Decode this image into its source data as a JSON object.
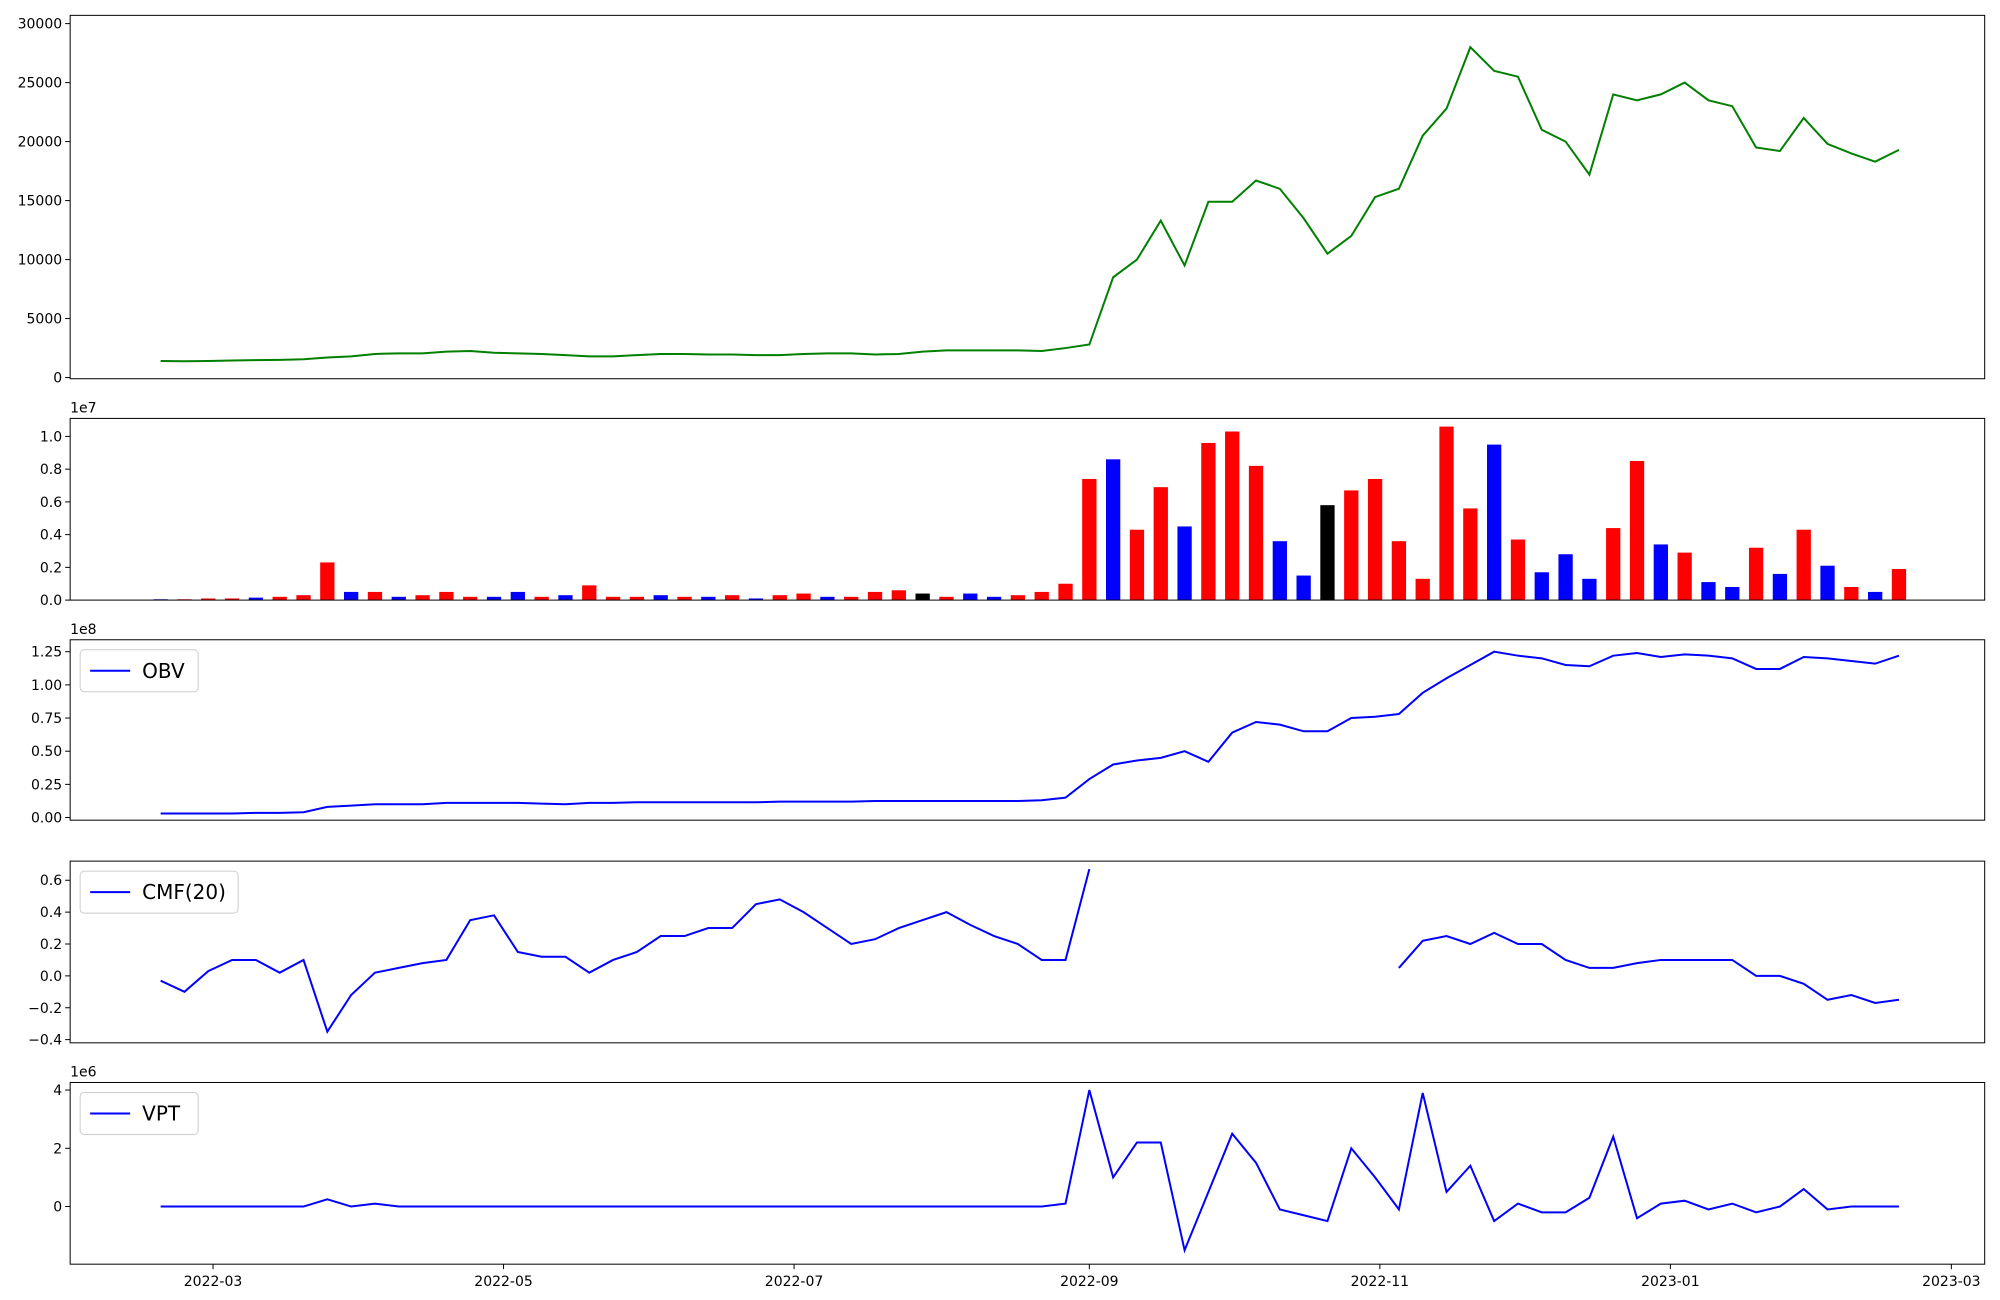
{
  "chart_data": [
    {
      "type": "line",
      "color": "green",
      "x": [
        "2022-02-18",
        "2022-02-23",
        "2022-02-28",
        "2022-03-05",
        "2022-03-10",
        "2022-03-15",
        "2022-03-20",
        "2022-03-25",
        "2022-03-30",
        "2022-04-04",
        "2022-04-09",
        "2022-04-14",
        "2022-04-19",
        "2022-04-24",
        "2022-04-29",
        "2022-05-04",
        "2022-05-09",
        "2022-05-14",
        "2022-05-19",
        "2022-05-24",
        "2022-05-29",
        "2022-06-03",
        "2022-06-08",
        "2022-06-13",
        "2022-06-18",
        "2022-06-23",
        "2022-06-28",
        "2022-07-03",
        "2022-07-08",
        "2022-07-13",
        "2022-07-18",
        "2022-07-23",
        "2022-07-28",
        "2022-08-02",
        "2022-08-07",
        "2022-08-12",
        "2022-08-17",
        "2022-08-22",
        "2022-08-27",
        "2022-09-01",
        "2022-09-06",
        "2022-09-11",
        "2022-09-16",
        "2022-09-21",
        "2022-09-26",
        "2022-10-01",
        "2022-10-06",
        "2022-10-11",
        "2022-10-16",
        "2022-10-21",
        "2022-10-26",
        "2022-10-31",
        "2022-11-05",
        "2022-11-10",
        "2022-11-15",
        "2022-11-20",
        "2022-11-25",
        "2022-11-30",
        "2022-12-05",
        "2022-12-10",
        "2022-12-15",
        "2022-12-20",
        "2022-12-25",
        "2022-12-30",
        "2023-01-04",
        "2023-01-09",
        "2023-01-14",
        "2023-01-19",
        "2023-01-24",
        "2023-01-29",
        "2023-02-03",
        "2023-02-08",
        "2023-02-13",
        "2023-02-18"
      ],
      "values": [
        1400,
        1380,
        1400,
        1450,
        1480,
        1500,
        1550,
        1700,
        1800,
        2000,
        2050,
        2050,
        2200,
        2250,
        2100,
        2050,
        2000,
        1900,
        1800,
        1800,
        1900,
        2000,
        2000,
        1950,
        1950,
        1900,
        1900,
        2000,
        2050,
        2050,
        1950,
        2000,
        2200,
        2300,
        2300,
        2300,
        2300,
        2250,
        2500,
        2800,
        8500,
        10000,
        13300,
        9500,
        14900,
        14900,
        16700,
        16000,
        13500,
        10500,
        12000,
        15300,
        16000,
        20500,
        22800,
        28000,
        26000,
        25500,
        21000,
        20000,
        17200,
        24000,
        23500,
        24000,
        25000,
        23500,
        23000,
        19500,
        19200,
        22000,
        19800,
        19000,
        18300,
        19300
      ],
      "xlim": [
        "2022-01-30",
        "2023-03-08"
      ],
      "ylim": [
        -100,
        30700
      ],
      "yticks": [
        0,
        5000,
        10000,
        15000,
        20000,
        25000,
        30000
      ]
    },
    {
      "type": "bar",
      "yscale_label": "1e7",
      "x": [
        "2022-02-18",
        "2022-02-23",
        "2022-02-28",
        "2022-03-05",
        "2022-03-10",
        "2022-03-15",
        "2022-03-20",
        "2022-03-25",
        "2022-03-30",
        "2022-04-04",
        "2022-04-09",
        "2022-04-14",
        "2022-04-19",
        "2022-04-24",
        "2022-04-29",
        "2022-05-04",
        "2022-05-09",
        "2022-05-14",
        "2022-05-19",
        "2022-05-24",
        "2022-05-29",
        "2022-06-03",
        "2022-06-08",
        "2022-06-13",
        "2022-06-18",
        "2022-06-23",
        "2022-06-28",
        "2022-07-03",
        "2022-07-08",
        "2022-07-13",
        "2022-07-18",
        "2022-07-23",
        "2022-07-28",
        "2022-08-02",
        "2022-08-07",
        "2022-08-12",
        "2022-08-17",
        "2022-08-22",
        "2022-08-27",
        "2022-09-01",
        "2022-09-06",
        "2022-09-11",
        "2022-09-16",
        "2022-09-21",
        "2022-09-26",
        "2022-10-01",
        "2022-10-06",
        "2022-10-11",
        "2022-10-16",
        "2022-10-21",
        "2022-10-26",
        "2022-10-31",
        "2022-11-05",
        "2022-11-10",
        "2022-11-15",
        "2022-11-20",
        "2022-11-25",
        "2022-11-30",
        "2022-12-05",
        "2022-12-10",
        "2022-12-15",
        "2022-12-20",
        "2022-12-25",
        "2022-12-30",
        "2023-01-04",
        "2023-01-09",
        "2023-01-14",
        "2023-01-19",
        "2023-01-24",
        "2023-01-29",
        "2023-02-03",
        "2023-02-08",
        "2023-02-13",
        "2023-02-18"
      ],
      "values": [
        0.005,
        0.005,
        0.01,
        0.01,
        0.015,
        0.02,
        0.03,
        0.23,
        0.05,
        0.05,
        0.02,
        0.03,
        0.05,
        0.02,
        0.02,
        0.05,
        0.02,
        0.03,
        0.09,
        0.02,
        0.02,
        0.03,
        0.02,
        0.02,
        0.03,
        0.01,
        0.03,
        0.04,
        0.02,
        0.02,
        0.05,
        0.06,
        0.04,
        0.02,
        0.04,
        0.02,
        0.03,
        0.05,
        0.1,
        0.74,
        0.86,
        0.43,
        0.69,
        0.45,
        0.96,
        1.03,
        0.82,
        0.36,
        0.15,
        0.58,
        0.67,
        0.74,
        0.36,
        0.13,
        1.06,
        0.56,
        0.95,
        0.37,
        0.17,
        0.28,
        0.13,
        0.44,
        0.85,
        0.34,
        0.29,
        0.11,
        0.08,
        0.32,
        0.16,
        0.43,
        0.21,
        0.08,
        0.05,
        0.19
      ],
      "colors": [
        "blue",
        "red",
        "red",
        "red",
        "blue",
        "red",
        "red",
        "red",
        "blue",
        "red",
        "blue",
        "red",
        "red",
        "red",
        "blue",
        "blue",
        "red",
        "blue",
        "red",
        "red",
        "red",
        "blue",
        "red",
        "blue",
        "red",
        "blue",
        "red",
        "red",
        "blue",
        "red",
        "red",
        "red",
        "black",
        "red",
        "blue",
        "blue",
        "red",
        "red",
        "red",
        "red",
        "blue",
        "red",
        "red",
        "blue",
        "red",
        "red",
        "red",
        "blue",
        "blue",
        "black",
        "red",
        "red",
        "red",
        "red",
        "red",
        "red",
        "blue",
        "red",
        "blue",
        "blue",
        "blue",
        "red",
        "red",
        "blue",
        "red",
        "blue",
        "blue",
        "red",
        "blue",
        "red",
        "blue",
        "red",
        "blue",
        "red"
      ],
      "xlim": [
        "2022-01-30",
        "2023-03-08"
      ],
      "ylim": [
        0,
        1.11
      ],
      "yticks": [
        {
          "value": 0,
          "label": "0.0"
        },
        {
          "value": 0.2,
          "label": "0.2"
        },
        {
          "value": 0.4,
          "label": "0.4"
        },
        {
          "value": 0.6,
          "label": "0.6"
        },
        {
          "value": 0.8,
          "label": "0.8"
        },
        {
          "value": 1,
          "label": "1.0"
        }
      ]
    },
    {
      "type": "line",
      "yscale_label": "1e8",
      "legend": "upper left",
      "x": [
        "2022-02-18",
        "2022-02-23",
        "2022-02-28",
        "2022-03-05",
        "2022-03-10",
        "2022-03-15",
        "2022-03-20",
        "2022-03-25",
        "2022-03-30",
        "2022-04-04",
        "2022-04-09",
        "2022-04-14",
        "2022-04-19",
        "2022-04-24",
        "2022-04-29",
        "2022-05-04",
        "2022-05-09",
        "2022-05-14",
        "2022-05-19",
        "2022-05-24",
        "2022-05-29",
        "2022-06-03",
        "2022-06-08",
        "2022-06-13",
        "2022-06-18",
        "2022-06-23",
        "2022-06-28",
        "2022-07-03",
        "2022-07-08",
        "2022-07-13",
        "2022-07-18",
        "2022-07-23",
        "2022-07-28",
        "2022-08-02",
        "2022-08-07",
        "2022-08-12",
        "2022-08-17",
        "2022-08-22",
        "2022-08-27",
        "2022-09-01",
        "2022-09-06",
        "2022-09-11",
        "2022-09-16",
        "2022-09-21",
        "2022-09-26",
        "2022-10-01",
        "2022-10-06",
        "2022-10-11",
        "2022-10-16",
        "2022-10-21",
        "2022-10-26",
        "2022-10-31",
        "2022-11-05",
        "2022-11-10",
        "2022-11-15",
        "2022-11-20",
        "2022-11-25",
        "2022-11-30",
        "2022-12-05",
        "2022-12-10",
        "2022-12-15",
        "2022-12-20",
        "2022-12-25",
        "2022-12-30",
        "2023-01-04",
        "2023-01-09",
        "2023-01-14",
        "2023-01-19",
        "2023-01-24",
        "2023-01-29",
        "2023-02-03",
        "2023-02-08",
        "2023-02-13",
        "2023-02-18"
      ],
      "series": [
        {
          "name": "OBV",
          "color": "blue",
          "values": [
            0.03,
            0.03,
            0.03,
            0.03,
            0.035,
            0.035,
            0.04,
            0.08,
            0.09,
            0.1,
            0.1,
            0.1,
            0.11,
            0.11,
            0.11,
            0.11,
            0.105,
            0.1,
            0.11,
            0.11,
            0.115,
            0.115,
            0.115,
            0.115,
            0.115,
            0.115,
            0.12,
            0.12,
            0.12,
            0.12,
            0.125,
            0.125,
            0.125,
            0.125,
            0.125,
            0.125,
            0.125,
            0.13,
            0.15,
            0.29,
            0.4,
            0.43,
            0.45,
            0.5,
            0.42,
            0.64,
            0.72,
            0.7,
            0.65,
            0.65,
            0.75,
            0.76,
            0.78,
            0.94,
            1.05,
            1.15,
            1.25,
            1.22,
            1.2,
            1.15,
            1.14,
            1.22,
            1.24,
            1.21,
            1.23,
            1.22,
            1.2,
            1.12,
            1.12,
            1.21,
            1.2,
            1.18,
            1.16,
            1.22
          ]
        }
      ],
      "xlim": [
        "2022-01-30",
        "2023-03-08"
      ],
      "ylim": [
        -0.02,
        1.34
      ],
      "yticks": [
        {
          "value": 0,
          "label": "0.00"
        },
        {
          "value": 0.25,
          "label": "0.25"
        },
        {
          "value": 0.5,
          "label": "0.50"
        },
        {
          "value": 0.75,
          "label": "0.75"
        },
        {
          "value": 1,
          "label": "1.00"
        },
        {
          "value": 1.25,
          "label": "1.25"
        }
      ]
    },
    {
      "type": "line",
      "legend": "upper left",
      "x": [
        "2022-02-18",
        "2022-02-23",
        "2022-02-28",
        "2022-03-05",
        "2022-03-10",
        "2022-03-15",
        "2022-03-20",
        "2022-03-25",
        "2022-03-30",
        "2022-04-04",
        "2022-04-09",
        "2022-04-14",
        "2022-04-19",
        "2022-04-24",
        "2022-04-29",
        "2022-05-04",
        "2022-05-09",
        "2022-05-14",
        "2022-05-19",
        "2022-05-24",
        "2022-05-29",
        "2022-06-03",
        "2022-06-08",
        "2022-06-13",
        "2022-06-18",
        "2022-06-23",
        "2022-06-28",
        "2022-07-03",
        "2022-07-08",
        "2022-07-13",
        "2022-07-18",
        "2022-07-23",
        "2022-07-28",
        "2022-08-02",
        "2022-08-07",
        "2022-08-12",
        "2022-08-17",
        "2022-08-22",
        "2022-08-27",
        "2022-09-01",
        "2022-09-06",
        "2022-09-11",
        "2022-09-16",
        "2022-09-21",
        "2022-09-26",
        "2022-10-01",
        "2022-10-06",
        "2022-10-11",
        "2022-10-16",
        "2022-10-21",
        "2022-10-26",
        "2022-10-31",
        "2022-11-05",
        "2022-11-10",
        "2022-11-15",
        "2022-11-20",
        "2022-11-25",
        "2022-11-30",
        "2022-12-05",
        "2022-12-10",
        "2022-12-15",
        "2022-12-20",
        "2022-12-25",
        "2022-12-30",
        "2023-01-04",
        "2023-01-09",
        "2023-01-14",
        "2023-01-19",
        "2023-01-24",
        "2023-01-29",
        "2023-02-03",
        "2023-02-08",
        "2023-02-13",
        "2023-02-18"
      ],
      "series": [
        {
          "name": "CMF(20)",
          "color": "blue",
          "values": [
            -0.03,
            -0.1,
            0.03,
            0.1,
            0.1,
            0.02,
            0.1,
            -0.35,
            -0.12,
            0.02,
            0.05,
            0.08,
            0.1,
            0.35,
            0.38,
            0.15,
            0.12,
            0.12,
            0.02,
            0.1,
            0.15,
            0.25,
            0.25,
            0.3,
            0.3,
            0.45,
            0.48,
            0.4,
            0.3,
            0.2,
            0.23,
            0.3,
            0.35,
            0.4,
            0.32,
            0.25,
            0.2,
            0.1,
            0.1,
            0.67,
            null,
            null,
            null,
            null,
            null,
            null,
            null,
            null,
            null,
            null,
            null,
            null,
            0.05,
            0.22,
            0.25,
            0.2,
            0.27,
            0.2,
            0.2,
            0.1,
            0.05,
            0.05,
            0.08,
            0.1,
            0.1,
            0.1,
            0.1,
            0.0,
            0.0,
            -0.05,
            -0.15,
            -0.12,
            -0.17,
            -0.15
          ]
        }
      ],
      "xlim": [
        "2022-01-30",
        "2023-03-08"
      ],
      "ylim": [
        -0.42,
        0.72
      ],
      "yticks": [
        {
          "value": -0.4,
          "label": "−0.4"
        },
        {
          "value": -0.2,
          "label": "−0.2"
        },
        {
          "value": 0,
          "label": "0.0"
        },
        {
          "value": 0.2,
          "label": "0.2"
        },
        {
          "value": 0.4,
          "label": "0.4"
        },
        {
          "value": 0.6,
          "label": "0.6"
        }
      ]
    },
    {
      "type": "line",
      "yscale_label": "1e6",
      "legend": "upper left",
      "x": [
        "2022-02-18",
        "2022-02-23",
        "2022-02-28",
        "2022-03-05",
        "2022-03-10",
        "2022-03-15",
        "2022-03-20",
        "2022-03-25",
        "2022-03-30",
        "2022-04-04",
        "2022-04-09",
        "2022-04-14",
        "2022-04-19",
        "2022-04-24",
        "2022-04-29",
        "2022-05-04",
        "2022-05-09",
        "2022-05-14",
        "2022-05-19",
        "2022-05-24",
        "2022-05-29",
        "2022-06-03",
        "2022-06-08",
        "2022-06-13",
        "2022-06-18",
        "2022-06-23",
        "2022-06-28",
        "2022-07-03",
        "2022-07-08",
        "2022-07-13",
        "2022-07-18",
        "2022-07-23",
        "2022-07-28",
        "2022-08-02",
        "2022-08-07",
        "2022-08-12",
        "2022-08-17",
        "2022-08-22",
        "2022-08-27",
        "2022-09-01",
        "2022-09-06",
        "2022-09-11",
        "2022-09-16",
        "2022-09-21",
        "2022-09-26",
        "2022-10-01",
        "2022-10-06",
        "2022-10-11",
        "2022-10-16",
        "2022-10-21",
        "2022-10-26",
        "2022-10-31",
        "2022-11-05",
        "2022-11-10",
        "2022-11-15",
        "2022-11-20",
        "2022-11-25",
        "2022-11-30",
        "2022-12-05",
        "2022-12-10",
        "2022-12-15",
        "2022-12-20",
        "2022-12-25",
        "2022-12-30",
        "2023-01-04",
        "2023-01-09",
        "2023-01-14",
        "2023-01-19",
        "2023-01-24",
        "2023-01-29",
        "2023-02-03",
        "2023-02-08",
        "2023-02-13",
        "2023-02-18"
      ],
      "series": [
        {
          "name": "VPT",
          "color": "blue",
          "values": [
            0,
            0,
            0,
            0,
            0,
            0,
            0,
            0.25,
            0,
            0.1,
            0,
            0,
            0,
            0,
            0,
            0,
            0,
            0,
            0,
            0,
            0,
            0,
            0,
            0,
            0,
            0,
            0,
            0,
            0,
            0,
            0,
            0,
            0,
            0,
            0,
            0,
            0,
            0,
            0.1,
            4.0,
            1.0,
            2.2,
            2.2,
            -1.5,
            0.5,
            2.5,
            1.5,
            -0.1,
            -0.3,
            -0.5,
            2.0,
            1.0,
            -0.1,
            3.9,
            0.5,
            1.4,
            -0.5,
            0.1,
            -0.2,
            -0.2,
            0.3,
            2.4,
            -0.4,
            0.1,
            0.2,
            -0.1,
            0.1,
            -0.2,
            0.0,
            0.6,
            -0.1,
            0.0,
            0.0,
            0.0
          ]
        }
      ],
      "xlim": [
        "2022-01-30",
        "2023-03-08"
      ],
      "ylim": [
        -1.98,
        4.26
      ],
      "yticks": [
        0,
        2,
        4
      ],
      "xticks": [
        {
          "value": "2022-03-01",
          "label": "2022-03"
        },
        {
          "value": "2022-05-01",
          "label": "2022-05"
        },
        {
          "value": "2022-07-01",
          "label": "2022-07"
        },
        {
          "value": "2022-09-01",
          "label": "2022-09"
        },
        {
          "value": "2022-11-01",
          "label": "2022-11"
        },
        {
          "value": "2023-01-01",
          "label": "2023-01"
        },
        {
          "value": "2023-03-01",
          "label": "2023-03"
        }
      ]
    }
  ]
}
